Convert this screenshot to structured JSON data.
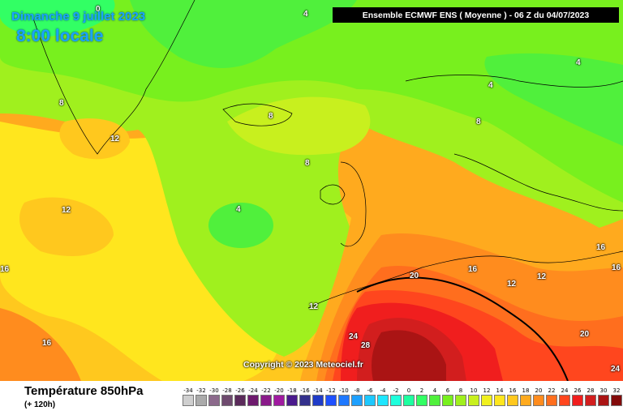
{
  "header": {
    "date": "Dimanche 9 juillet 2023",
    "time": "8:00 locale",
    "model_run": "Ensemble ECMWF ENS  ( Moyenne )  -  06 Z du 04/07/2023"
  },
  "map": {
    "copyright": "Copyright © 2023 Meteociel.fr",
    "contour_labels": [
      "0",
      "4",
      "4",
      "4",
      "4",
      "8",
      "8",
      "8",
      "8",
      "12",
      "12",
      "12",
      "12",
      "12",
      "16",
      "16",
      "16",
      "16",
      "16",
      "20",
      "20",
      "24",
      "24",
      "28"
    ]
  },
  "footer": {
    "parameter": "Température 850hPa",
    "forecast_step": "(+ 120h)"
  },
  "legend": {
    "labels": [
      "-34",
      "-32",
      "-30",
      "-28",
      "-26",
      "-24",
      "-22",
      "-20",
      "-18",
      "-16",
      "-14",
      "-12",
      "-10",
      "-8",
      "-6",
      "-4",
      "-2",
      "0",
      "2",
      "4",
      "6",
      "8",
      "10",
      "12",
      "14",
      "16",
      "18",
      "20",
      "22",
      "24",
      "26",
      "28",
      "30",
      "32",
      "34"
    ],
    "colors": [
      "#cfcfcf",
      "#ababab",
      "#8c6a8c",
      "#6e4a6e",
      "#5a2a5a",
      "#6e1a6e",
      "#8a1a8a",
      "#a01aa0",
      "#4a1a8c",
      "#33308c",
      "#1f3cc8",
      "#1e50ff",
      "#1e78ff",
      "#1ea0ff",
      "#1ec8ff",
      "#1ee6ff",
      "#1effdc",
      "#1effa0",
      "#32ff64",
      "#50f03c",
      "#78f01e",
      "#a0f01e",
      "#c8f01e",
      "#f0f01e",
      "#ffe61e",
      "#ffc81e",
      "#ffaa1e",
      "#ff8c1e",
      "#ff6e1e",
      "#ff461e",
      "#f01e1e",
      "#d21e1e",
      "#aa1414",
      "#820a0a",
      "#500000"
    ]
  }
}
